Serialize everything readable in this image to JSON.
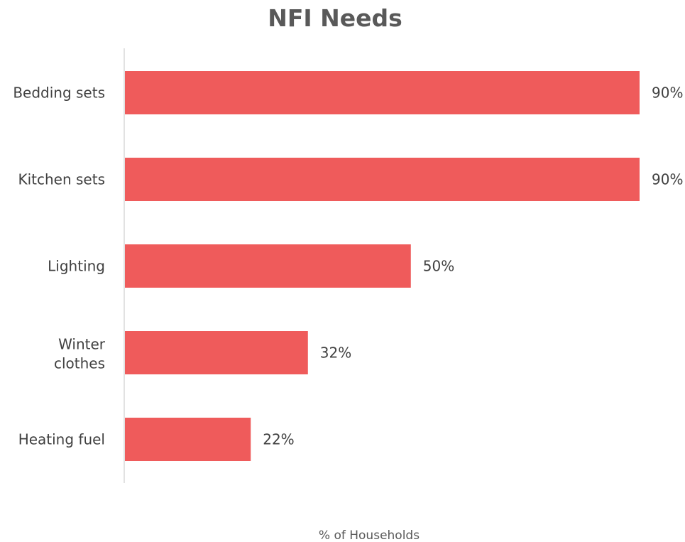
{
  "chart_data": {
    "type": "bar",
    "orientation": "horizontal",
    "title": "NFI Needs",
    "xlabel": "% of Households",
    "ylabel": "",
    "categories": [
      "Bedding sets",
      "Kitchen sets",
      "Lighting",
      "Winter clothes",
      "Heating fuel"
    ],
    "values": [
      90,
      90,
      50,
      32,
      22
    ],
    "value_labels": [
      "90%",
      "90%",
      "50%",
      "32%",
      "22%"
    ],
    "unit": "%",
    "xlim": [
      0,
      90
    ],
    "grid": false,
    "legend": "none",
    "bar_color": "#EF5B5B",
    "axis_color": "#D9D9D9"
  }
}
